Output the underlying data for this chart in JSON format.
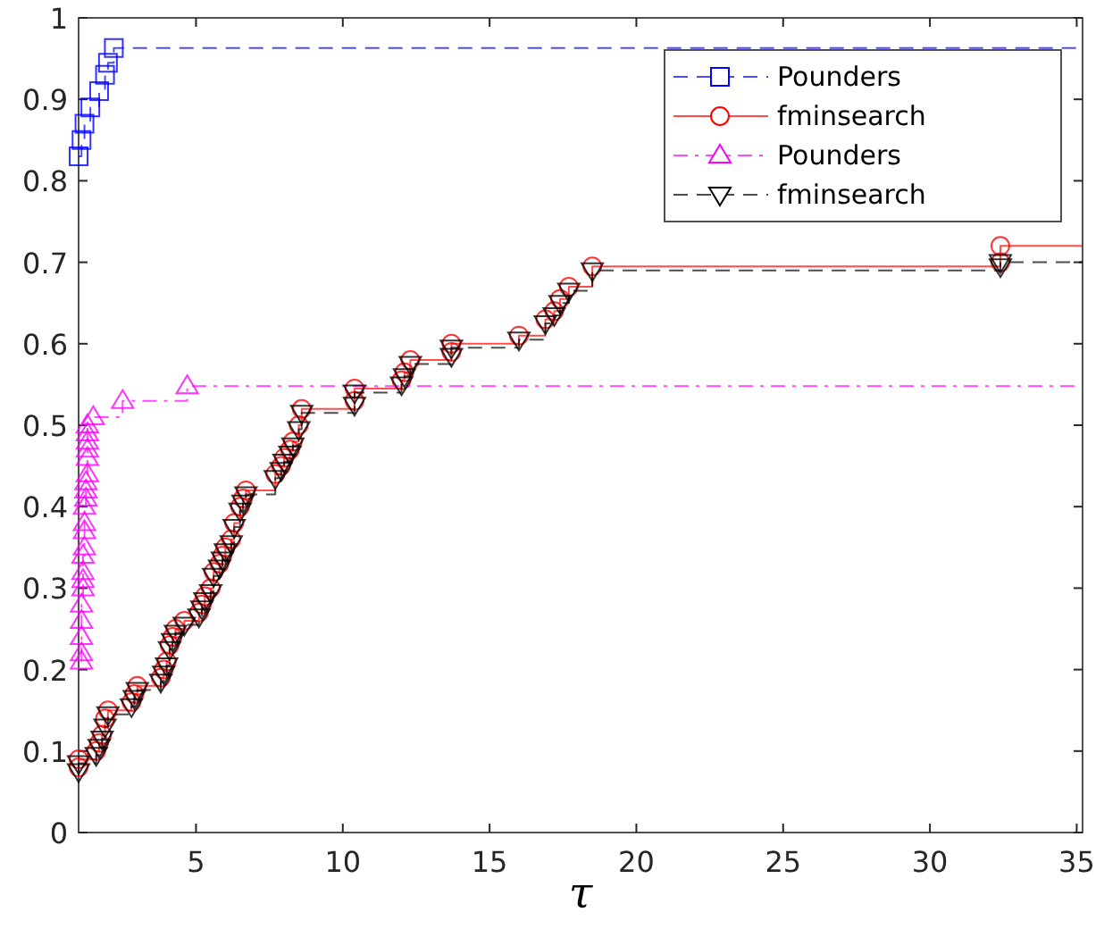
{
  "chart_data": {
    "type": "step",
    "xlabel": "τ",
    "xlim": [
      1,
      35.2
    ],
    "xticks": [
      5,
      10,
      15,
      20,
      25,
      30,
      35
    ],
    "ylim": [
      0,
      1
    ],
    "yticks": [
      0,
      0.1,
      0.2,
      0.3,
      0.4,
      0.5,
      0.6,
      0.7,
      0.8,
      0.9,
      1
    ],
    "grid": false,
    "legend": "top right",
    "series": [
      {
        "name": "Pounders",
        "color": "#0000ff",
        "marker": "square",
        "line_style": "dashed",
        "x": [
          1,
          1.1,
          1.2,
          1.4,
          1.7,
          1.9,
          2.0,
          2.2,
          35.2
        ],
        "values": [
          0.83,
          0.85,
          0.87,
          0.89,
          0.91,
          0.93,
          0.945,
          0.963,
          0.963
        ]
      },
      {
        "name": "fminsearch",
        "color": "#ff0000",
        "marker": "circle",
        "line_style": "solid",
        "x": [
          1.0,
          1.0,
          1.6,
          1.7,
          1.8,
          1.9,
          2.0,
          2.8,
          2.9,
          3.0,
          3.8,
          3.9,
          4.0,
          4.1,
          4.2,
          4.3,
          4.6,
          5.1,
          5.2,
          5.3,
          5.5,
          5.6,
          5.8,
          5.9,
          6.0,
          6.2,
          6.3,
          6.5,
          6.6,
          6.7,
          7.7,
          7.9,
          8.0,
          8.2,
          8.3,
          8.5,
          8.6,
          10.4,
          10.4,
          12.0,
          12.1,
          12.3,
          13.7,
          13.7,
          16.0,
          16.9,
          17.2,
          17.4,
          17.7,
          18.5,
          32.4,
          32.4,
          35.2
        ],
        "values": [
          0.08,
          0.09,
          0.1,
          0.11,
          0.12,
          0.14,
          0.15,
          0.16,
          0.17,
          0.18,
          0.19,
          0.2,
          0.21,
          0.23,
          0.24,
          0.25,
          0.26,
          0.27,
          0.28,
          0.29,
          0.3,
          0.32,
          0.33,
          0.34,
          0.35,
          0.36,
          0.38,
          0.4,
          0.41,
          0.42,
          0.44,
          0.45,
          0.46,
          0.47,
          0.48,
          0.5,
          0.52,
          0.53,
          0.545,
          0.555,
          0.565,
          0.58,
          0.59,
          0.6,
          0.61,
          0.63,
          0.64,
          0.655,
          0.67,
          0.695,
          0.7,
          0.72,
          0.72
        ]
      },
      {
        "name": "Pounders",
        "color": "#ff00ff",
        "marker": "triangle",
        "line_style": "dashdot",
        "x": [
          1.1,
          1.1,
          1.1,
          1.1,
          1.1,
          1.15,
          1.15,
          1.15,
          1.15,
          1.2,
          1.2,
          1.2,
          1.2,
          1.25,
          1.25,
          1.25,
          1.3,
          1.3,
          1.3,
          1.3,
          1.3,
          1.3,
          1.5,
          2.5,
          4.7,
          35.2
        ],
        "values": [
          0.21,
          0.22,
          0.24,
          0.26,
          0.28,
          0.3,
          0.31,
          0.32,
          0.34,
          0.35,
          0.37,
          0.38,
          0.4,
          0.41,
          0.42,
          0.43,
          0.44,
          0.46,
          0.47,
          0.48,
          0.49,
          0.5,
          0.51,
          0.53,
          0.548,
          0.548
        ]
      },
      {
        "name": "fminsearch",
        "color": "#000000",
        "marker": "triangle-down",
        "line_style": "dashed",
        "x": [
          1.0,
          1.0,
          1.6,
          1.7,
          1.8,
          1.9,
          2.0,
          2.8,
          2.9,
          3.0,
          3.8,
          3.9,
          4.0,
          4.1,
          4.2,
          4.3,
          4.6,
          5.1,
          5.2,
          5.3,
          5.5,
          5.6,
          5.8,
          5.9,
          6.0,
          6.2,
          6.3,
          6.5,
          6.6,
          6.7,
          7.7,
          7.9,
          8.0,
          8.2,
          8.3,
          8.5,
          8.6,
          10.4,
          10.4,
          12.0,
          12.1,
          12.3,
          13.7,
          13.7,
          16.0,
          16.9,
          17.2,
          17.4,
          17.7,
          18.5,
          32.4,
          32.4,
          35.2
        ],
        "values": [
          0.075,
          0.085,
          0.095,
          0.105,
          0.115,
          0.13,
          0.145,
          0.155,
          0.165,
          0.175,
          0.185,
          0.195,
          0.205,
          0.225,
          0.235,
          0.245,
          0.255,
          0.265,
          0.275,
          0.285,
          0.295,
          0.315,
          0.325,
          0.335,
          0.345,
          0.355,
          0.375,
          0.395,
          0.405,
          0.415,
          0.435,
          0.445,
          0.455,
          0.465,
          0.475,
          0.495,
          0.515,
          0.525,
          0.54,
          0.55,
          0.56,
          0.575,
          0.585,
          0.595,
          0.605,
          0.625,
          0.635,
          0.65,
          0.665,
          0.69,
          0.695,
          0.7,
          0.7
        ]
      }
    ]
  }
}
